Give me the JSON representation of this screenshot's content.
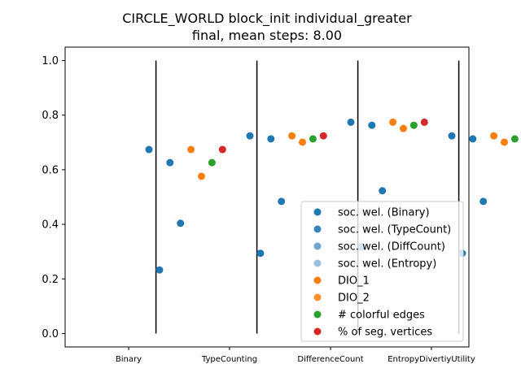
{
  "chart_data": {
    "type": "scatter",
    "title": "CIRCLE_WORLD block_init individual_greater",
    "subtitle": "final, mean steps: 8.00",
    "xlabel": "",
    "ylabel": "",
    "ylim": [
      0,
      1
    ],
    "yticks": [
      "0.0",
      "0.2",
      "0.4",
      "0.6",
      "0.8",
      "1.0"
    ],
    "categories": [
      "Binary",
      "TypeCounting",
      "DifferenceCount",
      "EntropyDivertiyUtility"
    ],
    "grid": false,
    "legend_position": "lower-right",
    "series": [
      {
        "name": "soc. wel. (Binary)",
        "color": "#1f77b4",
        "values": [
          0.674,
          0.724,
          0.774,
          0.724
        ]
      },
      {
        "name": "soc. wel. (TypeCount)",
        "color": "#1f77b4",
        "values": [
          0.233,
          0.294,
          0.317,
          0.294
        ]
      },
      {
        "name": "soc. wel. (DiffCount)",
        "color": "#1f77b4",
        "values": [
          0.626,
          0.713,
          0.763,
          0.713
        ]
      },
      {
        "name": "soc. wel. (Entropy)",
        "color": "#1f77b4",
        "values": [
          0.404,
          0.484,
          0.523,
          0.484
        ]
      },
      {
        "name": "DIO_1",
        "color": "#ff7f0e",
        "values": [
          0.674,
          0.724,
          0.774,
          0.724
        ]
      },
      {
        "name": "DIO_2",
        "color": "#ff7f0e",
        "values": [
          0.576,
          0.701,
          0.751,
          0.701
        ]
      },
      {
        "name": "# colorful edges",
        "color": "#2ca02c",
        "values": [
          0.626,
          0.713,
          0.763,
          0.713
        ]
      },
      {
        "name": "% of seg. vertices",
        "color": "#d62728",
        "values": [
          0.674,
          0.724,
          0.774,
          0.724
        ]
      }
    ],
    "legend": [
      {
        "label": "soc. wel. (Binary)",
        "color": "#1f77b4",
        "alpha": 1.0
      },
      {
        "label": "soc. wel. (TypeCount)",
        "color": "#1f77b4",
        "alpha": 0.9
      },
      {
        "label": "soc. wel. (DiffCount)",
        "color": "#1f77b4",
        "alpha": 0.65
      },
      {
        "label": "soc. wel. (Entropy)",
        "color": "#1f77b4",
        "alpha": 0.45
      },
      {
        "label": "DIO_1",
        "color": "#ff7f0e",
        "alpha": 1.0
      },
      {
        "label": "DIO_2",
        "color": "#ff7f0e",
        "alpha": 0.85
      },
      {
        "label": "# colorful edges",
        "color": "#2ca02c",
        "alpha": 1.0
      },
      {
        "label": "% of seg. vertices",
        "color": "#d62728",
        "alpha": 1.0
      }
    ]
  }
}
